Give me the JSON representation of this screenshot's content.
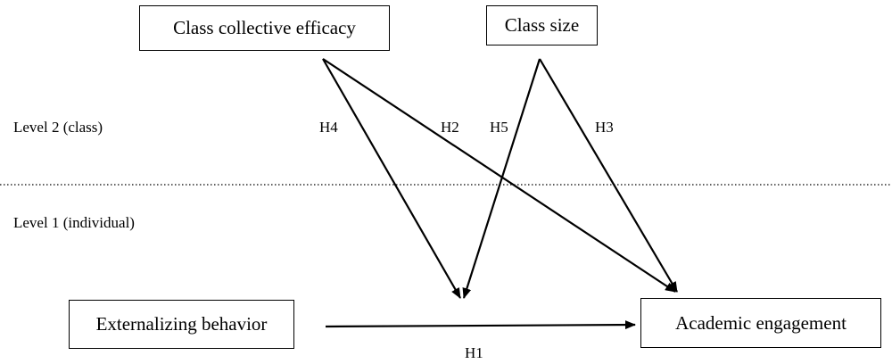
{
  "levels": {
    "level2": "Level 2 (class)",
    "level1": "Level 1 (individual)"
  },
  "nodes": {
    "class_collective_efficacy": "Class collective efficacy",
    "class_size": "Class size",
    "externalizing_behavior": "Externalizing behavior",
    "academic_engagement": "Academic engagement"
  },
  "hypotheses": {
    "h1": "H1",
    "h2": "H2",
    "h3": "H3",
    "h4": "H4",
    "h5": "H5"
  },
  "edges": [
    {
      "from": "externalizing_behavior",
      "to": "academic_engagement",
      "label": "h1"
    },
    {
      "from": "class_collective_efficacy",
      "to": "academic_engagement",
      "label": "h2"
    },
    {
      "from": "class_size",
      "to": "academic_engagement",
      "label": "h3"
    },
    {
      "from": "class_collective_efficacy",
      "to": "h1_path",
      "label": "h4"
    },
    {
      "from": "class_size",
      "to": "h1_path",
      "label": "h5"
    }
  ]
}
